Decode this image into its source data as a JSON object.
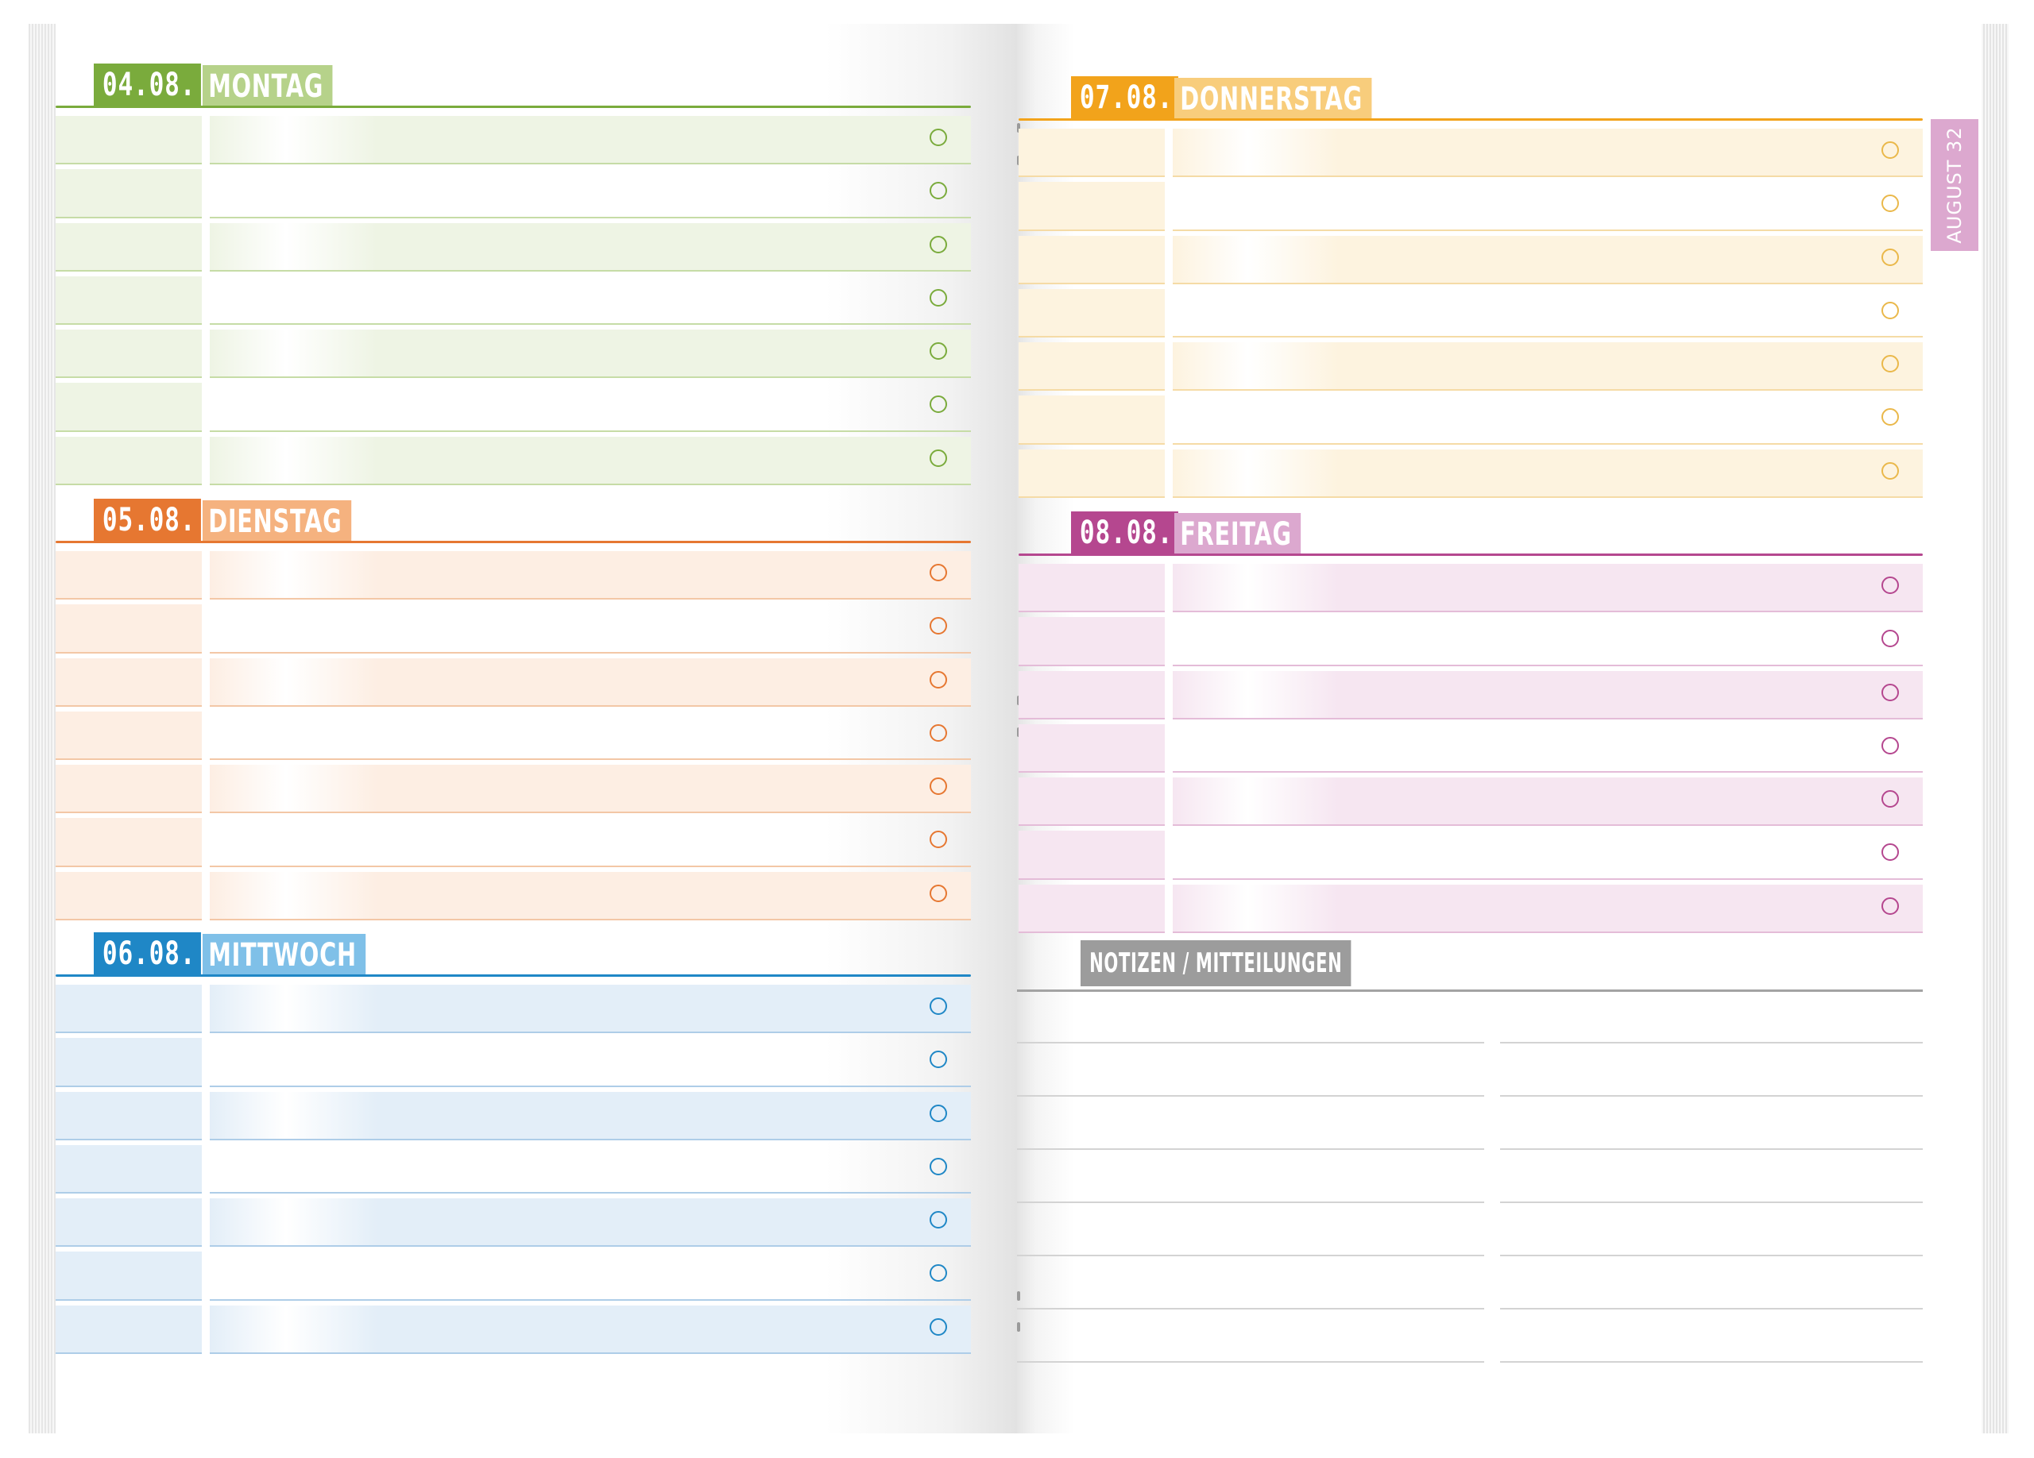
{
  "days": [
    {
      "key": "mon",
      "date": "04.08.",
      "name": "MONTAG",
      "colors": {
        "strong": "#7aab3c",
        "light": "#b6d28a",
        "band": "#eef4e4",
        "line": "#c6dca6",
        "circle": "#7aab3c"
      },
      "rows": 7
    },
    {
      "key": "tue",
      "date": "05.08.",
      "name": "DIENSTAG",
      "colors": {
        "strong": "#e67731",
        "light": "#f5b27f",
        "band": "#fdeee3",
        "line": "#f3c7a6",
        "circle": "#e67731"
      },
      "rows": 7
    },
    {
      "key": "wed",
      "date": "06.08.",
      "name": "MITTWOCH",
      "colors": {
        "strong": "#1f87c6",
        "light": "#7fc0e8",
        "band": "#e3eef8",
        "line": "#aecde8",
        "circle": "#1f87c6"
      },
      "rows": 7
    },
    {
      "key": "thu",
      "date": "07.08.",
      "name": "DONNERSTAG",
      "colors": {
        "strong": "#f2a31b",
        "light": "#f8cd7c",
        "band": "#fdf3df",
        "line": "#f5dba6",
        "circle": "#eab84a"
      },
      "rows": 7
    },
    {
      "key": "fri",
      "date": "08.08.",
      "name": "FREITAG",
      "colors": {
        "strong": "#b5478f",
        "light": "#dca8cf",
        "band": "#f6e6f1",
        "line": "#e4bcd8",
        "circle": "#b5478f"
      },
      "rows": 7
    }
  ],
  "month_tab": {
    "label": "AUGUST 32",
    "color": "#dca8cf"
  },
  "notes": {
    "title": "NOTIZEN / MITTEILUNGEN",
    "lines_per_column": 7
  }
}
